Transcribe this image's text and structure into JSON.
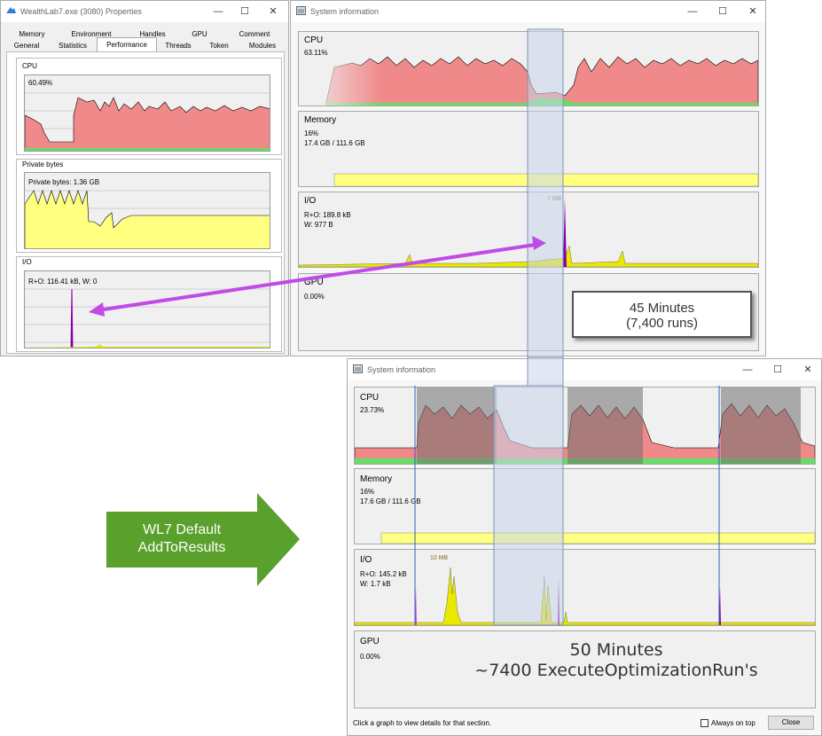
{
  "colors": {
    "cpu_fill": "#f08a8a",
    "cpu_kernel": "#66dd66",
    "memory_fill": "#ffff80",
    "io_spike": "#8b00a8",
    "io_yellow": "#e8e800",
    "arrow": "#c04be6",
    "green_arrow": "#5aa02c",
    "highlight": "#c8d6ea",
    "grey_overlay": "#808080"
  },
  "properties_window": {
    "title": "WealthLab7.exe (3080) Properties",
    "tabs_row1": [
      "Memory",
      "Environment",
      "Handles",
      "GPU",
      "Comment"
    ],
    "tabs_row2": [
      "General",
      "Statistics",
      "Performance",
      "Threads",
      "Token",
      "Modules"
    ],
    "active_tab": "Performance",
    "cpu": {
      "label": "CPU",
      "value": "60.49%",
      "percent": 60.49
    },
    "private_bytes": {
      "label": "Private bytes",
      "value": "Private bytes: 1.36 GB"
    },
    "io": {
      "label": "I/O",
      "value": "R+O: 116.41 kB, W: 0"
    }
  },
  "sysinfo_top": {
    "title": "System information",
    "cpu": {
      "label": "CPU",
      "value": "63.11%",
      "percent": 63.11
    },
    "memory": {
      "label": "Memory",
      "percent_text": "16%",
      "usage": "17.4 GB / 111.6 GB",
      "fraction": 0.156
    },
    "io": {
      "label": "I/O",
      "line1": "R+O: 189.8 kB",
      "line2": "W: 977 B",
      "peak": "7 MB"
    },
    "gpu": {
      "label": "GPU",
      "value": "0.00%"
    }
  },
  "callout_top": {
    "line1": "45 Minutes",
    "line2": "(7,400 runs)"
  },
  "sysinfo_bottom": {
    "title": "System information",
    "cpu": {
      "label": "CPU",
      "value": "23.73%",
      "percent": 23.73
    },
    "memory": {
      "label": "Memory",
      "percent_text": "16%",
      "usage": "17.6 GB / 111.6 GB",
      "fraction": 0.158
    },
    "io": {
      "label": "I/O",
      "line1": "R+O: 145.2 kB",
      "line2": "W: 1.7 kB",
      "peak": "10 MB"
    },
    "gpu": {
      "label": "GPU",
      "value": "0.00%"
    },
    "overlay_line1": "50 Minutes",
    "overlay_line2": "~7400 ExecuteOptimizationRun's",
    "status_text": "Click a graph to view details for that section.",
    "always_on_top": "Always on top",
    "close_button": "Close"
  },
  "green_arrow": {
    "line1": "WL7 Default",
    "line2": "AddToResults"
  }
}
